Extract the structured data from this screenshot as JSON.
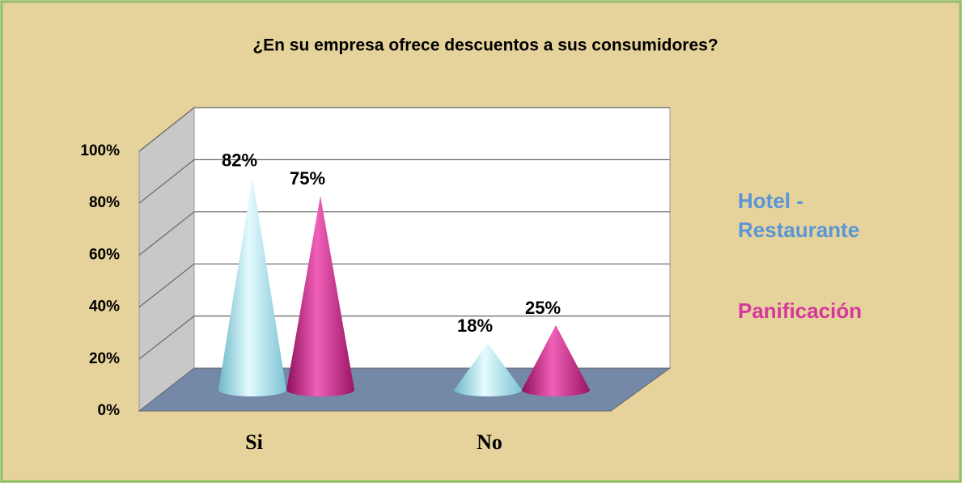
{
  "chart_data": {
    "type": "cone",
    "title": "¿En su empresa ofrece  descuentos a sus consumidores?",
    "categories": [
      "Si",
      "No"
    ],
    "series": [
      {
        "name": "Hotel - Restaurante",
        "color": "#9adbe8",
        "values": [
          82,
          18
        ],
        "value_labels": [
          "82%",
          "18%"
        ]
      },
      {
        "name": "Panificación",
        "color": "#d2288f",
        "values": [
          75,
          25
        ],
        "value_labels": [
          "75%",
          "25%"
        ]
      }
    ],
    "ylim": [
      0,
      100
    ],
    "yticks": [
      {
        "value": 0,
        "label": "0%"
      },
      {
        "value": 20,
        "label": "20%"
      },
      {
        "value": 40,
        "label": "40%"
      },
      {
        "value": 60,
        "label": "60%"
      },
      {
        "value": 80,
        "label": "80%"
      },
      {
        "value": 100,
        "label": "100%"
      }
    ],
    "grid": true
  }
}
